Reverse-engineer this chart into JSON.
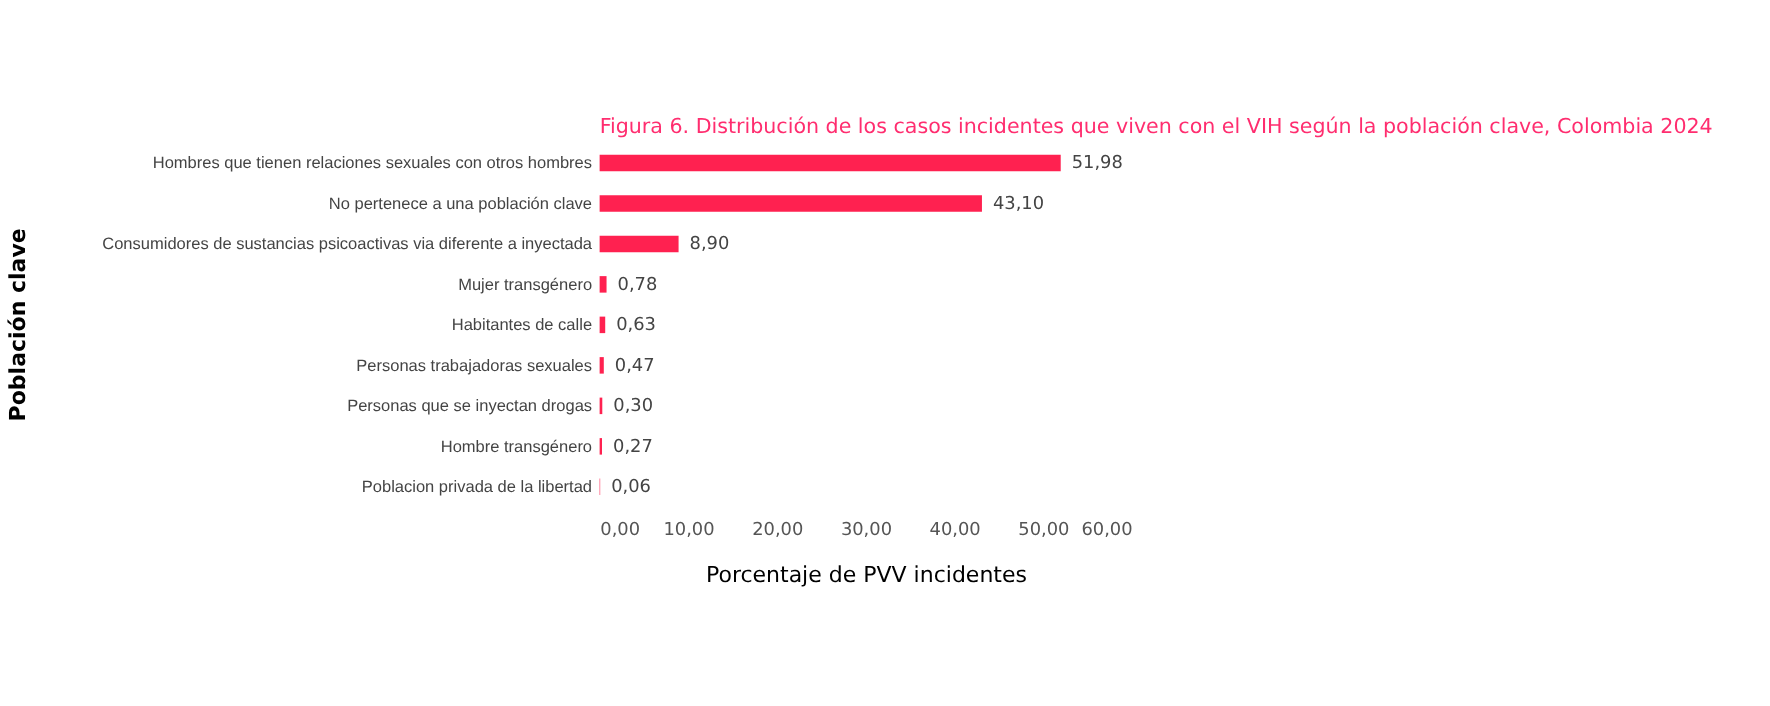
{
  "chart_data": {
    "type": "bar",
    "orientation": "horizontal",
    "title": "Figura 6. Distribución de los casos incidentes que viven con el VIH según la población clave, Colombia 2024",
    "xlabel": "Porcentaje de PVV incidentes",
    "ylabel": "Población clave",
    "categories": [
      "Hombres que tienen relaciones sexuales con otros hombres",
      "No pertenece a una población clave",
      "Consumidores de sustancias psicoactivas via diferente a inyectada",
      "Mujer transgénero",
      "Habitantes de calle",
      "Personas trabajadoras sexuales",
      "Personas que se inyectan drogas",
      "Hombre transgénero",
      "Poblacion privada de la libertad"
    ],
    "values": [
      51.98,
      43.1,
      8.9,
      0.78,
      0.63,
      0.47,
      0.3,
      0.27,
      0.06
    ],
    "value_labels": [
      "51,98",
      "43,10",
      "8,90",
      "0,78",
      "0,63",
      "0,47",
      "0,30",
      "0,27",
      "0,06"
    ],
    "color": "#ff2150",
    "xlim": [
      0,
      60
    ],
    "xticks": [
      {
        "value": 0,
        "label": "0,00"
      },
      {
        "value": 10,
        "label": "10,00"
      },
      {
        "value": 20,
        "label": "20,00"
      },
      {
        "value": 30,
        "label": "30,00"
      },
      {
        "value": 40,
        "label": "40,00"
      },
      {
        "value": 50,
        "label": "50,00"
      },
      {
        "value": 60,
        "label": "60,00"
      }
    ],
    "grid": false
  }
}
